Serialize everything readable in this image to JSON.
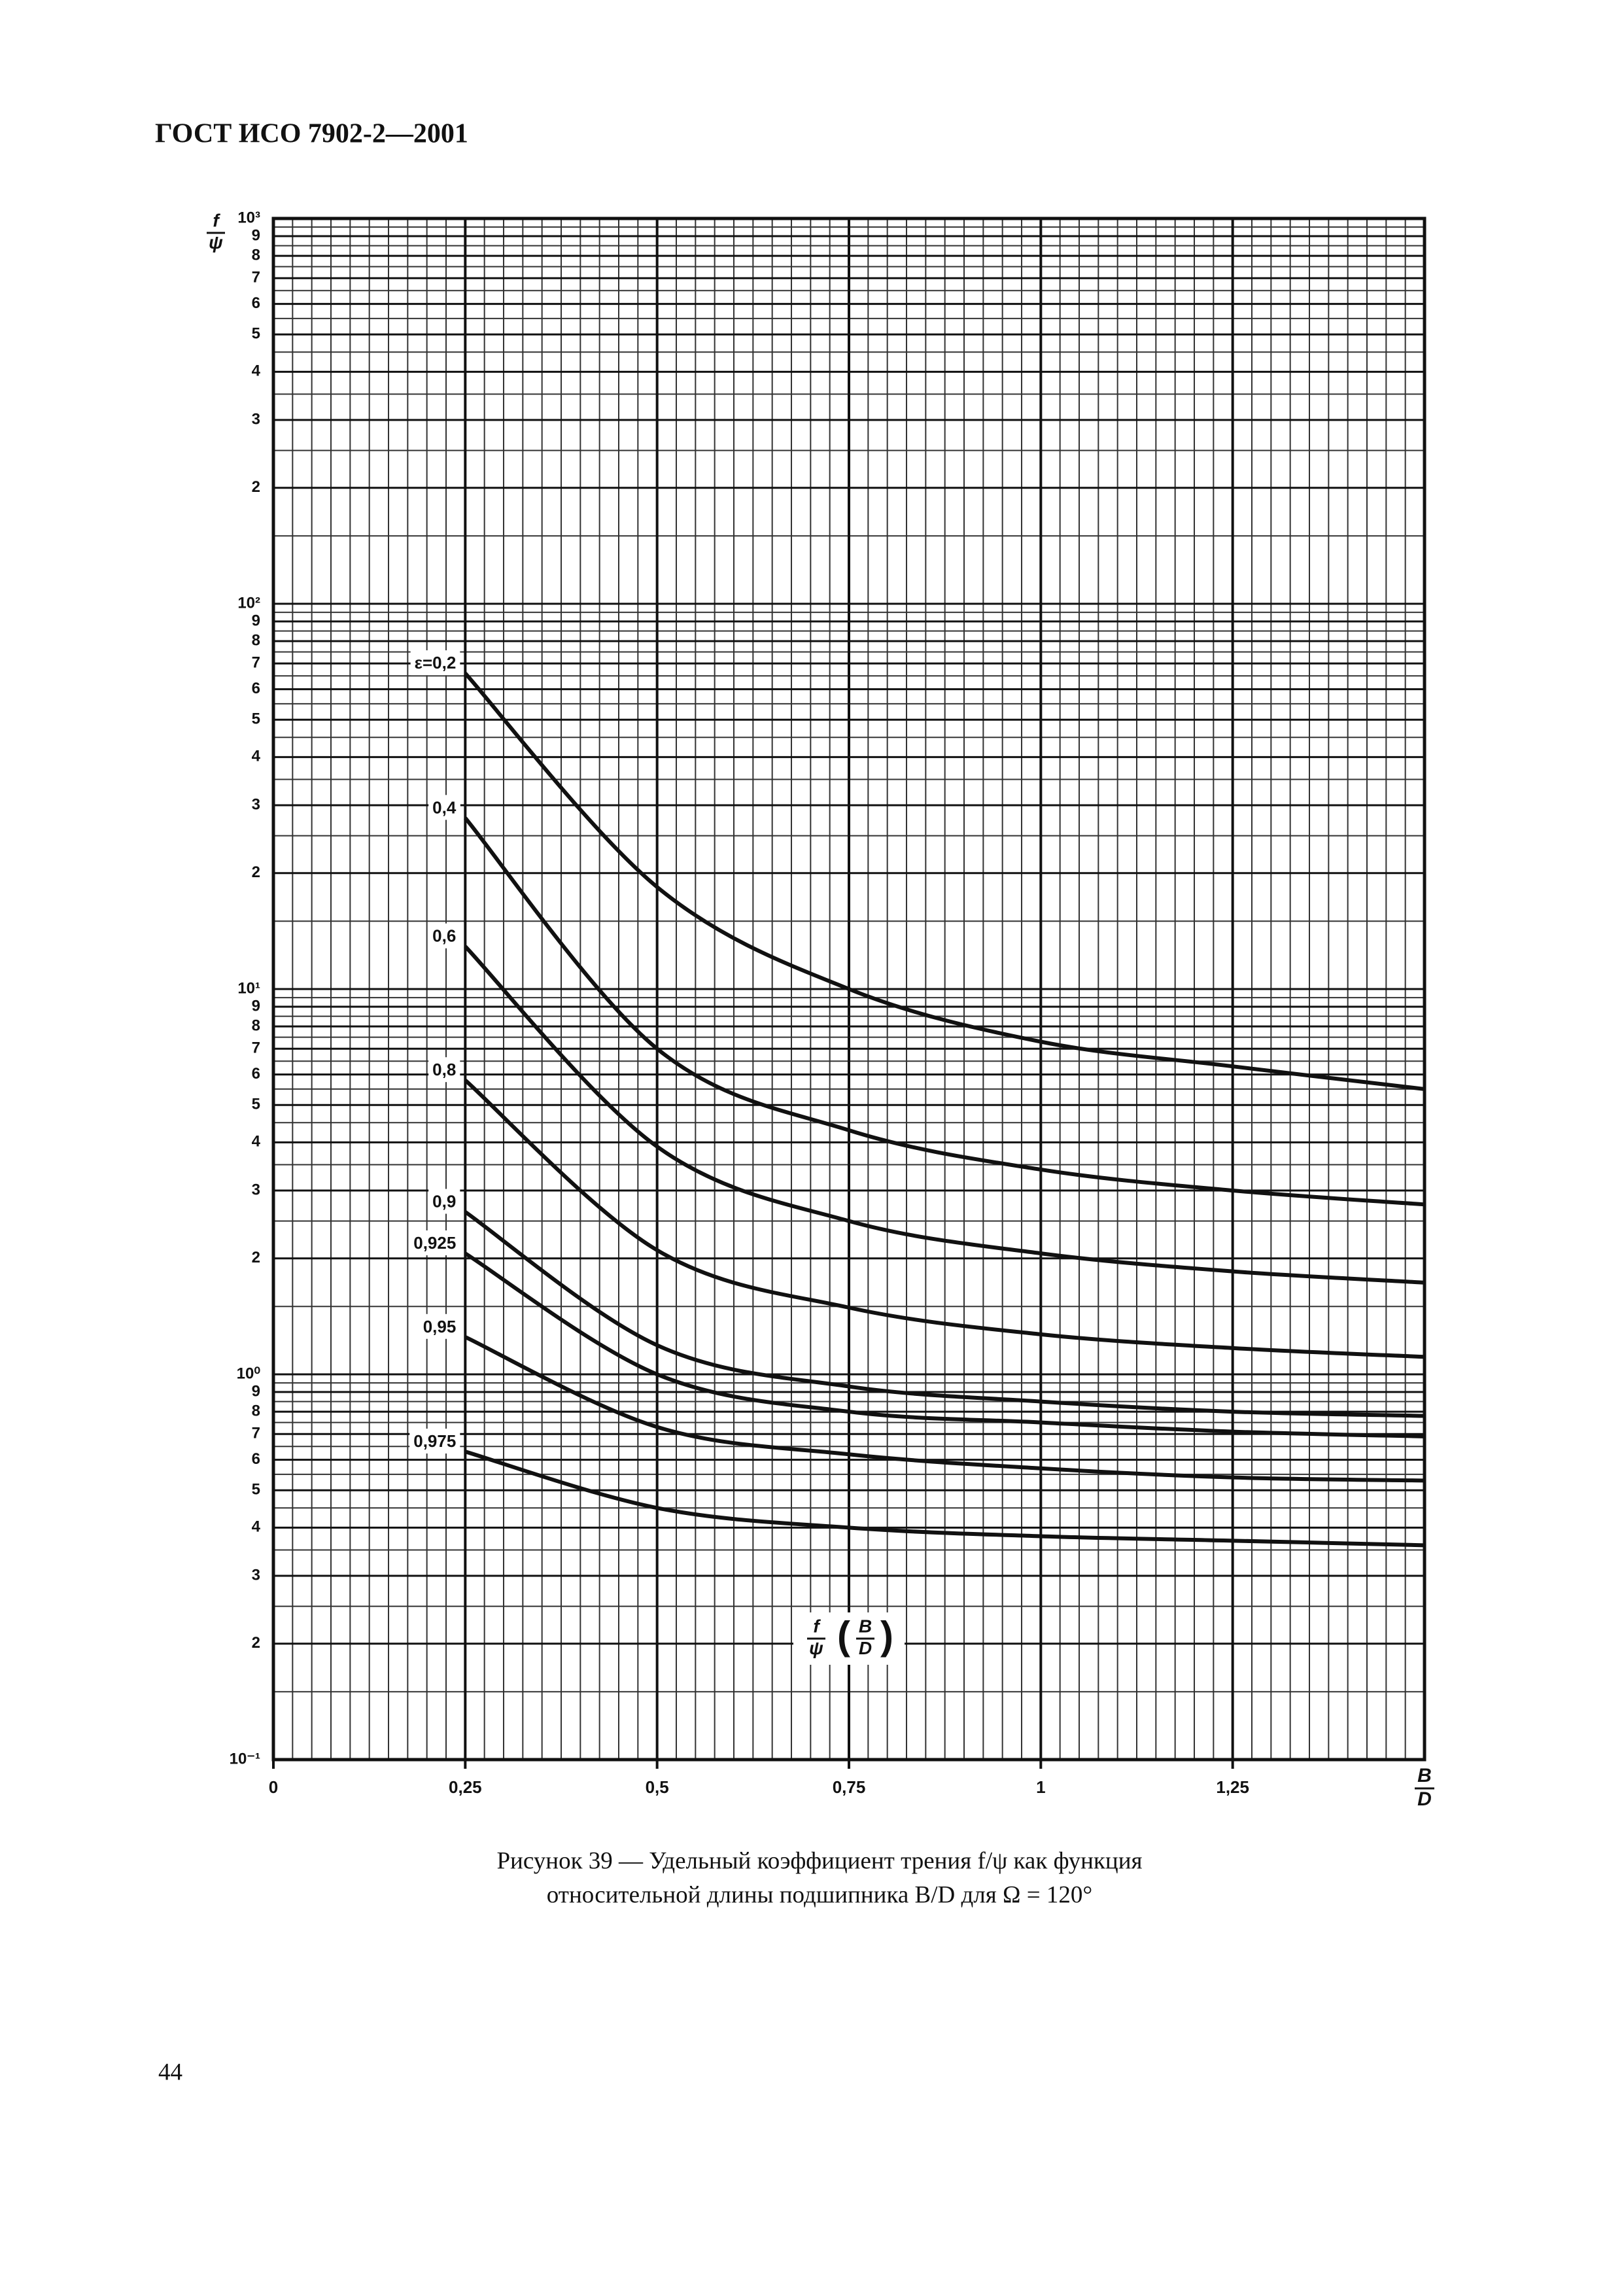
{
  "header": {
    "title": "ГОСТ ИСО 7902-2—2001"
  },
  "chart_data": {
    "type": "line",
    "ylabel": {
      "numerator": "f",
      "denominator": "ψ"
    },
    "xlabel": {
      "numerator": "B",
      "denominator": "D"
    },
    "annotation": {
      "ratio": {
        "numerator": "f",
        "denominator": "ψ"
      },
      "argument": {
        "numerator": "B",
        "denominator": "D"
      }
    },
    "x": [
      0.25,
      0.5,
      0.75,
      1,
      1.25,
      1.5
    ],
    "series": [
      {
        "name": "ε=0,2",
        "color": "#111111",
        "values": [
          66,
          18.4,
          10,
          7.3,
          6.3,
          5.5
        ]
      },
      {
        "name": "0,4",
        "color": "#111111",
        "values": [
          27.8,
          7.0,
          4.3,
          3.4,
          3.0,
          2.76
        ]
      },
      {
        "name": "0,6",
        "color": "#111111",
        "values": [
          12.9,
          3.9,
          2.5,
          2.06,
          1.85,
          1.73
        ]
      },
      {
        "name": "0,8",
        "color": "#111111",
        "values": [
          5.8,
          2.1,
          1.49,
          1.27,
          1.17,
          1.11
        ]
      },
      {
        "name": "0,9",
        "color": "#111111",
        "values": [
          2.64,
          1.19,
          0.93,
          0.85,
          0.8,
          0.78
        ]
      },
      {
        "name": "0,925",
        "color": "#111111",
        "values": [
          2.06,
          1.0,
          0.8,
          0.75,
          0.71,
          0.69
        ]
      },
      {
        "name": "0,95",
        "color": "#111111",
        "values": [
          1.25,
          0.73,
          0.62,
          0.57,
          0.54,
          0.53
        ]
      },
      {
        "name": "0,975",
        "color": "#111111",
        "values": [
          0.63,
          0.45,
          0.4,
          0.38,
          0.37,
          0.36
        ]
      }
    ],
    "xlim": [
      0,
      1.5
    ],
    "xticks": [
      0,
      {
        "value": 0.25,
        "label": "0,25"
      },
      {
        "value": 0.5,
        "label": "0,5"
      },
      {
        "value": 0.75,
        "label": "0,75"
      },
      1,
      {
        "value": 1.25,
        "label": "1,25"
      }
    ],
    "ylim": [
      0.1,
      1000
    ],
    "ylog": true,
    "grid": true,
    "yticks": [
      {
        "value": 0.1,
        "label": "10⁻¹"
      },
      {
        "value": 0.2,
        "label": "2"
      },
      {
        "value": 0.3,
        "label": "3"
      },
      {
        "value": 0.4,
        "label": "4"
      },
      {
        "value": 0.5,
        "label": "5"
      },
      {
        "value": 0.6,
        "label": "6"
      },
      {
        "value": 0.7,
        "label": "7"
      },
      {
        "value": 0.8,
        "label": "8"
      },
      {
        "value": 0.9,
        "label": "9"
      },
      {
        "value": 1,
        "label": "10⁰"
      },
      2,
      3,
      4,
      5,
      6,
      7,
      8,
      9,
      {
        "value": 10,
        "label": "10¹"
      },
      {
        "value": 20,
        "label": "2"
      },
      {
        "value": 30,
        "label": "3"
      },
      {
        "value": 40,
        "label": "4"
      },
      {
        "value": 50,
        "label": "5"
      },
      {
        "value": 60,
        "label": "6"
      },
      {
        "value": 70,
        "label": "7"
      },
      {
        "value": 80,
        "label": "8"
      },
      {
        "value": 90,
        "label": "9"
      },
      {
        "value": 100,
        "label": "10²"
      },
      {
        "value": 200,
        "label": "2"
      },
      {
        "value": 300,
        "label": "3"
      },
      {
        "value": 400,
        "label": "4"
      },
      {
        "value": 500,
        "label": "5"
      },
      {
        "value": 600,
        "label": "6"
      },
      {
        "value": 700,
        "label": "7"
      },
      {
        "value": 800,
        "label": "8"
      },
      {
        "value": 900,
        "label": "9"
      },
      {
        "value": 1000,
        "label": "10³"
      }
    ]
  },
  "figure": {
    "caption_lines": [
      "Рисунок 39 — Удельный коэффициент трения f/ψ как функция",
      "относительной длины подшипника B/D для Ω = 120°"
    ]
  },
  "page_number": "44"
}
